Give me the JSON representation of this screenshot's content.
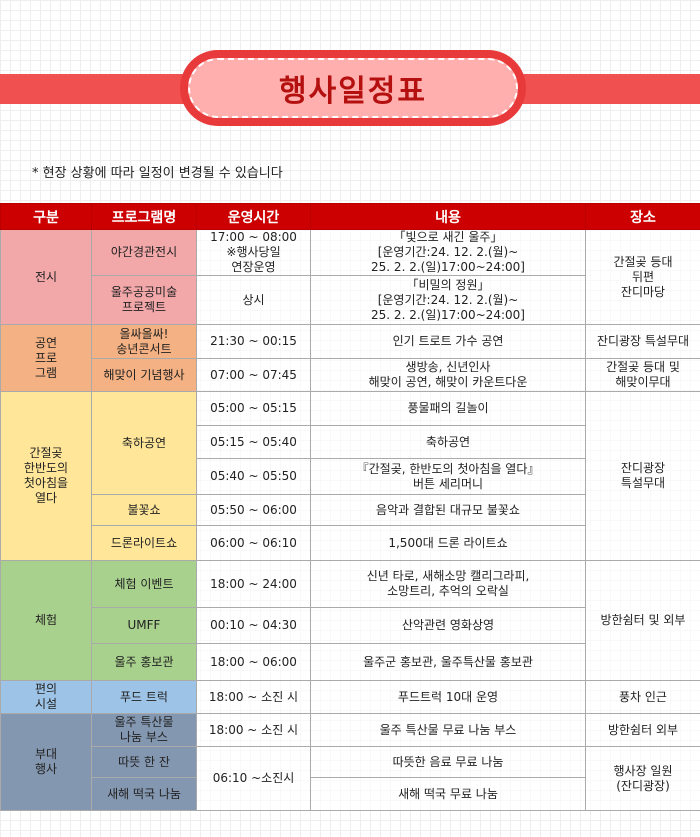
{
  "title": "행사일정표",
  "note": "* 현장 상황에 따라 일정이 변경될 수 있습니다",
  "colors": {
    "header": "#cc0000",
    "exhibit": "#f2a7a9",
    "performance": "#f4b183",
    "sunrise": "#ffe699",
    "experience": "#a9d18e",
    "convenience": "#9dc3e6",
    "side_event": "#8497b0"
  },
  "table": {
    "headers": [
      "구분",
      "프로그램명",
      "운영시간",
      "내용",
      "장소"
    ],
    "rows": [
      [
        "전시",
        "야간경관전시",
        "17:00 ~ 08:00\n※행사당일\n연장운영",
        "「빛으로 새긴 울주」\n[운영기간:24. 12. 2.(월)~\n25. 2. 2.(일)17:00~24:00]",
        "간절곶 등대\n뒤편\n잔디마당"
      ],
      [
        "울주공공미술\n프로젝트",
        "상시",
        "「비밀의 정원」\n[운영기간:24. 12. 2.(월)~\n25. 2. 2.(일)17:00~24:00]"
      ],
      [
        "공연\n프로\n그램",
        "올싸올싸!\n송년콘서트",
        "21:30 ~ 00:15",
        "인기 트로트 가수 공연",
        "잔디광장 특설무대"
      ],
      [
        "해맞이 기념행사",
        "07:00 ~ 07:45",
        "생방송, 신년인사\n해맞이 공연, 해맞이 카운트다운",
        "간절곶 등대 및\n해맞이무대"
      ],
      [
        "간절곶\n한반도의\n첫아침을\n열다",
        "축하공연",
        "05:00 ~ 05:15",
        "풍물패의 길놀이",
        "잔디광장\n특설무대"
      ],
      [
        "05:15 ~ 05:40",
        "축하공연"
      ],
      [
        "05:40 ~ 05:50",
        "『간절곶, 한반도의 첫아침을 열다』\n버튼 세리머니"
      ],
      [
        "불꽃쇼",
        "05:50 ~ 06:00",
        "음악과 결합된 대규모 불꽃쇼"
      ],
      [
        "드론라이트쇼",
        "06:00 ~ 06:10",
        "1,500대 드론 라이트쇼"
      ],
      [
        "체험",
        "체험 이벤트",
        "18:00 ~ 24:00",
        "신년 타로, 새해소망 캘리그라피,\n소망트리, 추억의 오락실",
        "방한쉼터 및 외부"
      ],
      [
        "UMFF",
        "00:10 ~ 04:30",
        "산악관련 영화상영"
      ],
      [
        "울주 홍보관",
        "18:00 ~ 06:00",
        "울주군 홍보관, 울주특산물 홍보관"
      ],
      [
        "편의\n시설",
        "푸드 트럭",
        "18:00 ~ 소진 시",
        "푸드트럭 10대 운영",
        "풍차 인근"
      ],
      [
        "부대\n행사",
        "울주 특산물\n나눔 부스",
        "18:00 ~ 소진 시",
        "울주 특산물 무료 나눔 부스",
        "방한쉼터 외부"
      ],
      [
        "따뜻 한 잔",
        "06:10 ~소진시",
        "따뜻한 음료 무료 나눔",
        "행사장 일원\n(잔디광장)"
      ],
      [
        "새해 떡국 나눔",
        "새해 떡국 무료 나눔"
      ]
    ]
  }
}
